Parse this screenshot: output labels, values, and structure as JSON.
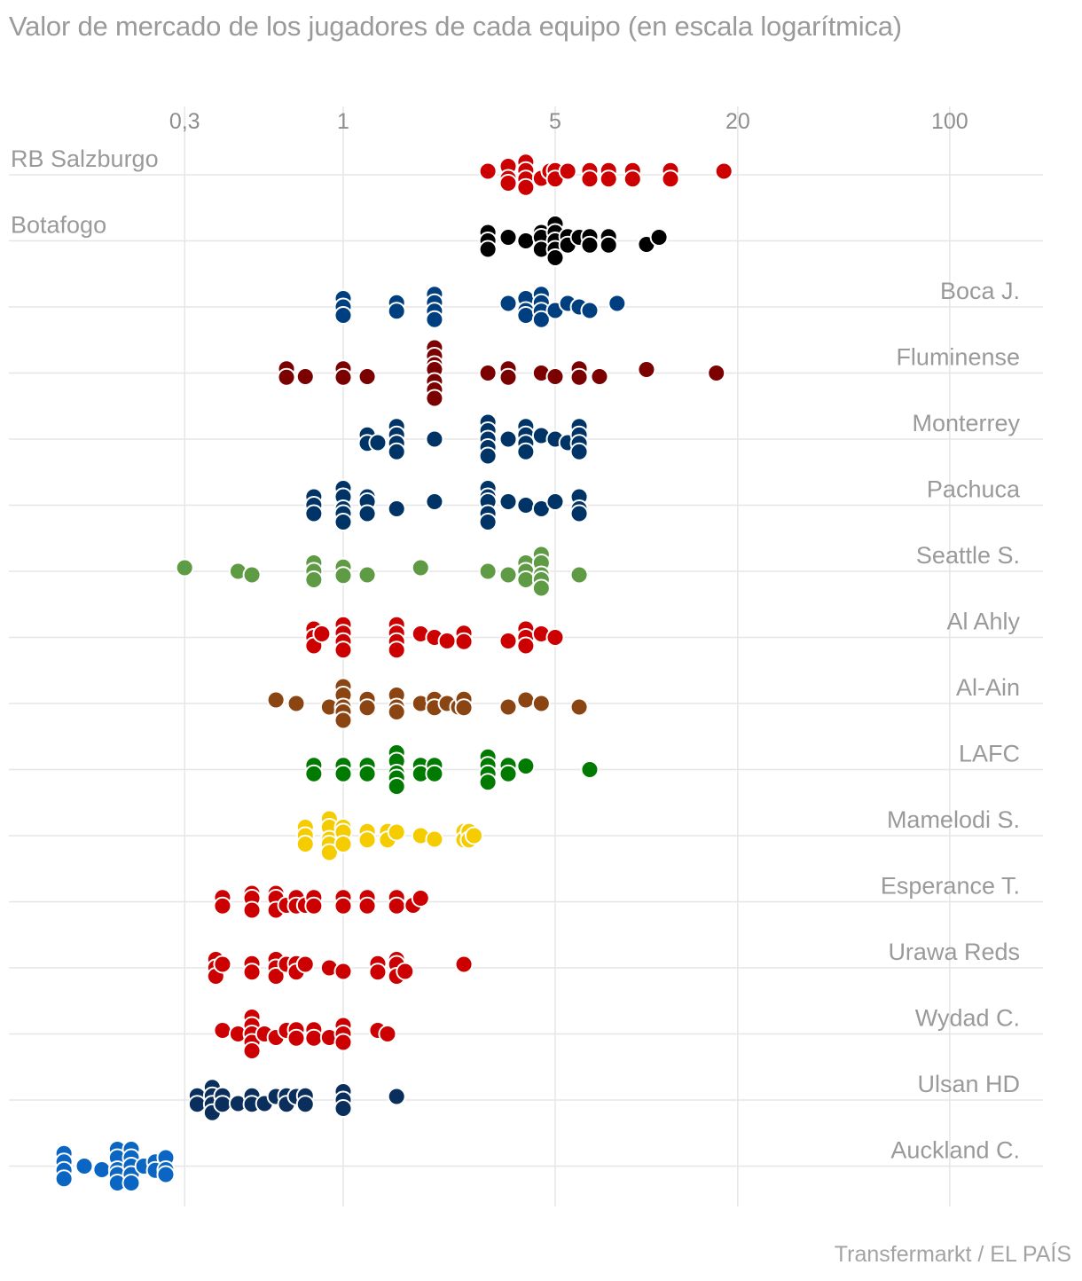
{
  "chart_data": {
    "type": "scatter",
    "title": "Valor de mercado de los jugadores de cada equipo (en escala logarítmica)",
    "source": "Transfermarkt / EL PAÍS",
    "x_scale": "log",
    "xlim": [
      0.11,
      200
    ],
    "xticks": [
      {
        "value": 0.3,
        "label": "0,3"
      },
      {
        "value": 1,
        "label": "1"
      },
      {
        "value": 5,
        "label": "5"
      },
      {
        "value": 20,
        "label": "20"
      },
      {
        "value": 100,
        "label": "100"
      }
    ],
    "grid": true,
    "series": [
      {
        "name": "RB Salzburgo",
        "color": "#cc0000",
        "label_side": "left",
        "values": [
          3,
          3.5,
          3.5,
          3.5,
          4,
          4,
          4,
          4,
          4.5,
          4.8,
          5,
          5,
          5.5,
          6.5,
          6.5,
          7.5,
          7.5,
          9,
          9,
          12,
          12,
          18
        ]
      },
      {
        "name": "Botafogo",
        "color": "#000000",
        "label_side": "left",
        "values": [
          3,
          3,
          3,
          3.5,
          4,
          4.5,
          4.5,
          4.5,
          5,
          5,
          5,
          5,
          5,
          5.5,
          5.5,
          6,
          6.5,
          6.5,
          7.5,
          7.5,
          10,
          11
        ]
      },
      {
        "name": "Boca J.",
        "color": "#003f7f",
        "label_side": "right",
        "values": [
          1,
          1,
          1,
          1.5,
          1.5,
          2,
          2,
          2,
          2,
          3.5,
          4,
          4,
          4,
          4.5,
          4.5,
          4.5,
          4.5,
          5,
          5.5,
          6,
          6.5,
          8
        ]
      },
      {
        "name": "Fluminense",
        "color": "#7b0000",
        "label_side": "right",
        "values": [
          0.65,
          0.65,
          0.75,
          1,
          1,
          1.2,
          2,
          2,
          2,
          2,
          2,
          2,
          2,
          3,
          3.5,
          3.5,
          4.5,
          5,
          6,
          6,
          7,
          10,
          17
        ]
      },
      {
        "name": "Monterrey",
        "color": "#003366",
        "label_side": "right",
        "values": [
          1.2,
          1.2,
          1.3,
          1.5,
          1.5,
          1.5,
          1.5,
          2,
          3,
          3,
          3,
          3,
          3,
          3.5,
          4,
          4,
          4,
          4,
          4.5,
          5,
          5.5,
          6,
          6,
          6,
          6
        ]
      },
      {
        "name": "Pachuca",
        "color": "#003366",
        "label_side": "right",
        "values": [
          0.8,
          0.8,
          0.8,
          1,
          1,
          1,
          1,
          1,
          1.2,
          1.2,
          1.2,
          1.5,
          2,
          3,
          3,
          3,
          3,
          3,
          3.5,
          4,
          4.5,
          5,
          6,
          6,
          6
        ]
      },
      {
        "name": "Seattle S.",
        "color": "#5f9a44",
        "label_side": "right",
        "values": [
          0.3,
          0.45,
          0.5,
          0.8,
          0.8,
          0.8,
          1,
          1,
          1.2,
          1.8,
          3,
          3.5,
          4,
          4,
          4,
          4.5,
          4.5,
          4.5,
          4.5,
          4.5,
          6
        ]
      },
      {
        "name": "Al Ahly",
        "color": "#cc0000",
        "label_side": "right",
        "values": [
          0.8,
          0.8,
          0.8,
          0.85,
          1,
          1,
          1,
          1,
          1.5,
          1.5,
          1.5,
          1.5,
          1.8,
          2,
          2.2,
          2.5,
          2.5,
          3.5,
          4,
          4,
          4,
          4.5,
          5
        ]
      },
      {
        "name": "Al-Ain",
        "color": "#8b4513",
        "label_side": "right",
        "values": [
          0.6,
          0.7,
          0.9,
          1,
          1,
          1,
          1,
          1,
          1.2,
          1.2,
          1.5,
          1.5,
          1.5,
          1.8,
          2,
          2,
          2.2,
          2.4,
          2.5,
          2.5,
          3.5,
          4,
          4.5,
          6
        ]
      },
      {
        "name": "LAFC",
        "color": "#007a00",
        "label_side": "right",
        "values": [
          0.8,
          0.8,
          1,
          1,
          1.2,
          1.2,
          1.5,
          1.5,
          1.5,
          1.5,
          1.5,
          1.8,
          1.8,
          2,
          2,
          3,
          3,
          3,
          3,
          3.5,
          3.5,
          4,
          6.5
        ]
      },
      {
        "name": "Mamelodi S.",
        "color": "#f5cc00",
        "label_side": "right",
        "values": [
          0.75,
          0.75,
          0.75,
          0.9,
          0.9,
          0.9,
          0.9,
          0.9,
          1,
          1,
          1,
          1.2,
          1.2,
          1.4,
          1.4,
          1.5,
          1.8,
          2,
          2.5,
          2.5,
          2.6,
          2.6,
          2.7
        ]
      },
      {
        "name": "Esperance T.",
        "color": "#cc0000",
        "label_side": "right",
        "values": [
          0.4,
          0.4,
          0.5,
          0.5,
          0.5,
          0.6,
          0.6,
          0.6,
          0.65,
          0.7,
          0.7,
          0.75,
          0.8,
          0.8,
          1,
          1,
          1.2,
          1.2,
          1.5,
          1.5,
          1.7,
          1.8
        ]
      },
      {
        "name": "Urawa Reds",
        "color": "#cc0000",
        "label_side": "right",
        "values": [
          0.38,
          0.38,
          0.38,
          0.4,
          0.5,
          0.5,
          0.6,
          0.6,
          0.6,
          0.65,
          0.7,
          0.7,
          0.75,
          0.9,
          1,
          1.3,
          1.3,
          1.5,
          1.5,
          1.5,
          1.6,
          2.5
        ]
      },
      {
        "name": "Wydad C.",
        "color": "#cc0000",
        "label_side": "right",
        "values": [
          0.4,
          0.45,
          0.5,
          0.5,
          0.5,
          0.5,
          0.5,
          0.55,
          0.6,
          0.65,
          0.7,
          0.7,
          0.8,
          0.8,
          0.9,
          1,
          1,
          1,
          1.3,
          1.4
        ]
      },
      {
        "name": "Ulsan HD",
        "color": "#0a2f5c",
        "label_side": "right",
        "values": [
          0.33,
          0.33,
          0.37,
          0.37,
          0.37,
          0.37,
          0.4,
          0.4,
          0.45,
          0.5,
          0.5,
          0.55,
          0.6,
          0.65,
          0.65,
          0.7,
          0.75,
          0.75,
          1,
          1,
          1,
          1.5
        ]
      },
      {
        "name": "Auckland C.",
        "color": "#0a66c2",
        "label_side": "right",
        "values": [
          0.12,
          0.12,
          0.12,
          0.12,
          0.14,
          0.16,
          0.18,
          0.18,
          0.18,
          0.18,
          0.18,
          0.2,
          0.2,
          0.2,
          0.2,
          0.2,
          0.22,
          0.24,
          0.24,
          0.26,
          0.26,
          0.26
        ]
      }
    ]
  }
}
